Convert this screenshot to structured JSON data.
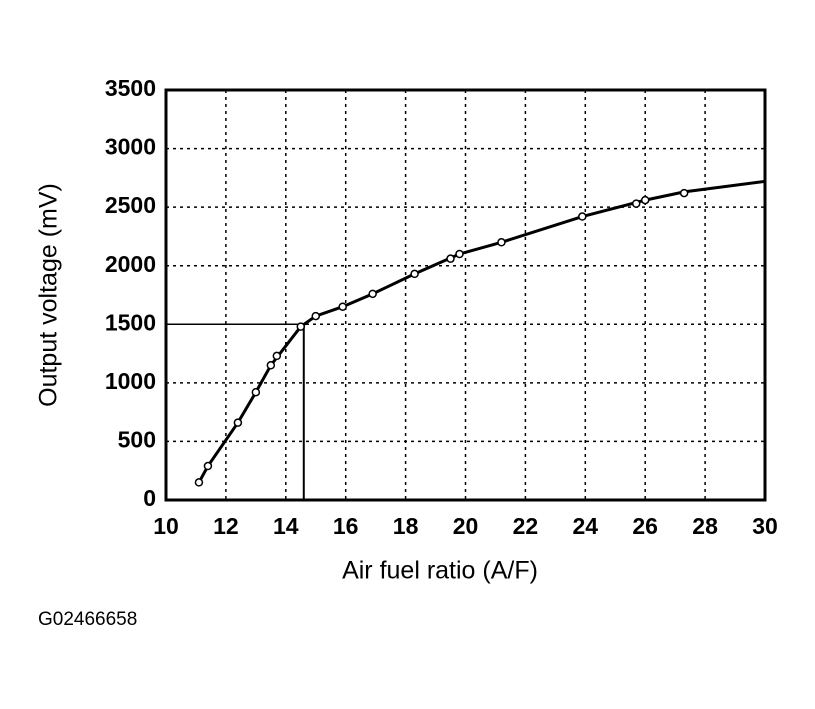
{
  "chart_data": {
    "type": "line",
    "x_label": "Air fuel ratio (A/F)",
    "y_label": "Output voltage (mV)",
    "caption": "G02466658",
    "xlim": [
      10,
      30
    ],
    "xticks": [
      10,
      12,
      14,
      16,
      18,
      20,
      22,
      24,
      26,
      28,
      30
    ],
    "ylim": [
      0,
      3500
    ],
    "yticks": [
      0,
      500,
      1000,
      1500,
      2000,
      2500,
      3000,
      3500
    ],
    "grid": true,
    "series": [
      {
        "color": "#000000",
        "marker": false,
        "x": [
          11.1,
          11.4,
          12.4,
          13.0,
          13.5,
          14.5,
          15.0,
          15.9,
          16.9,
          18.3,
          19.8,
          21.2,
          23.9,
          26.0,
          27.3,
          30
        ],
        "values": [
          150,
          290,
          660,
          920,
          1150,
          1480,
          1570,
          1650,
          1760,
          1930,
          2100,
          2200,
          2420,
          2560,
          2630,
          2720
        ]
      },
      {
        "color": "#000000",
        "marker": true,
        "x": [
          11.1,
          11.4,
          12.4,
          13.0,
          13.5,
          13.7,
          14.5,
          15.0,
          15.9,
          16.9,
          18.3,
          19.5,
          19.8,
          21.2,
          23.9,
          25.7,
          26.0,
          27.3
        ],
        "values": [
          150,
          290,
          660,
          920,
          1150,
          1230,
          1480,
          1570,
          1650,
          1760,
          1930,
          2060,
          2100,
          2200,
          2420,
          2530,
          2560,
          2620
        ]
      }
    ],
    "reference": {
      "x": 14.6,
      "y": 1500
    }
  }
}
